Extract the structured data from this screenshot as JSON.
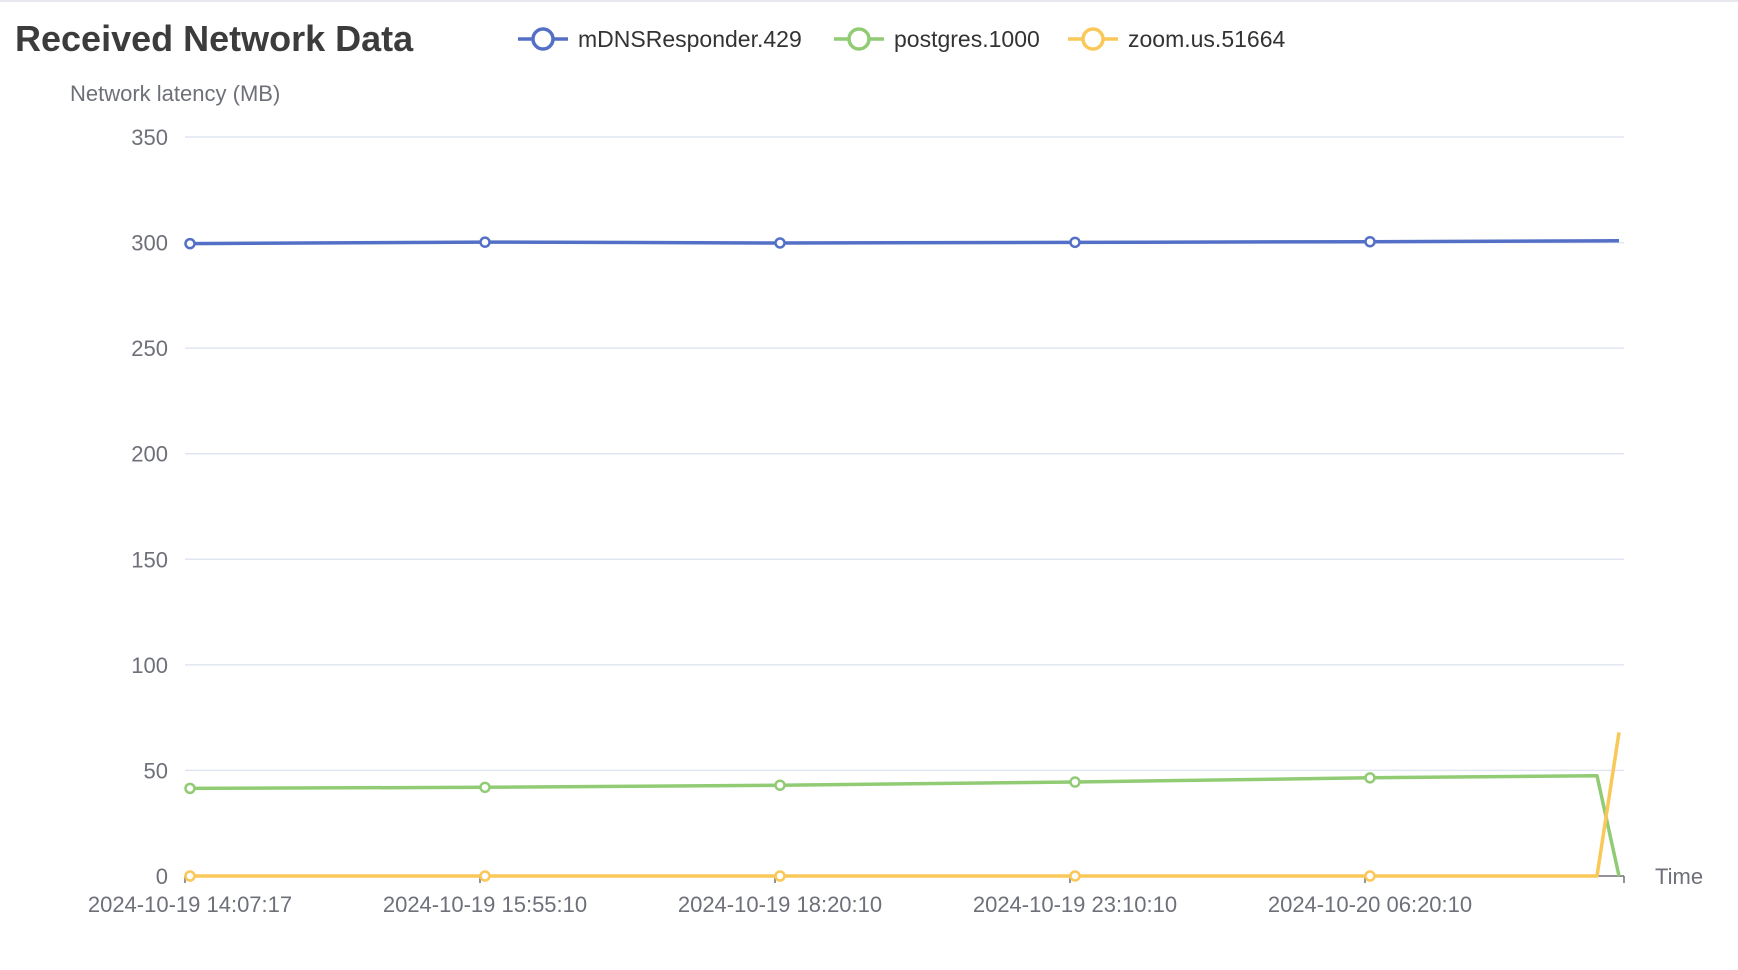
{
  "chart_data": {
    "type": "line",
    "title": "Received Network Data",
    "ylabel": "Network latency (MB)",
    "xlabel": "Time",
    "ylim": [
      0,
      350
    ],
    "y_ticks": [
      0,
      50,
      100,
      150,
      200,
      250,
      300,
      350
    ],
    "x_tick_labels": [
      "2024-10-19 14:07:17",
      "2024-10-19 15:55:10",
      "2024-10-19 18:20:10",
      "2024-10-19 23:10:10",
      "2024-10-20 06:20:10"
    ],
    "categories": [
      "2024-10-19 14:07:17",
      "2024-10-19 15:55:10",
      "2024-10-19 18:20:10",
      "2024-10-19 23:10:10",
      "2024-10-20 06:20:10",
      "",
      ""
    ],
    "grid": true,
    "legend_position": "top",
    "series": [
      {
        "name": "mDNSResponder.429",
        "color": "#5470c6",
        "values": [
          299.5,
          300.2,
          299.8,
          300.1,
          300.4,
          300.8,
          300.9
        ]
      },
      {
        "name": "postgres.1000",
        "color": "#91cc75",
        "values": [
          41.5,
          42.0,
          43.0,
          44.5,
          46.5,
          47.5,
          0
        ]
      },
      {
        "name": "zoom.us.51664",
        "color": "#fac858",
        "values": [
          0,
          0,
          0,
          0,
          0,
          0,
          68
        ]
      }
    ]
  }
}
